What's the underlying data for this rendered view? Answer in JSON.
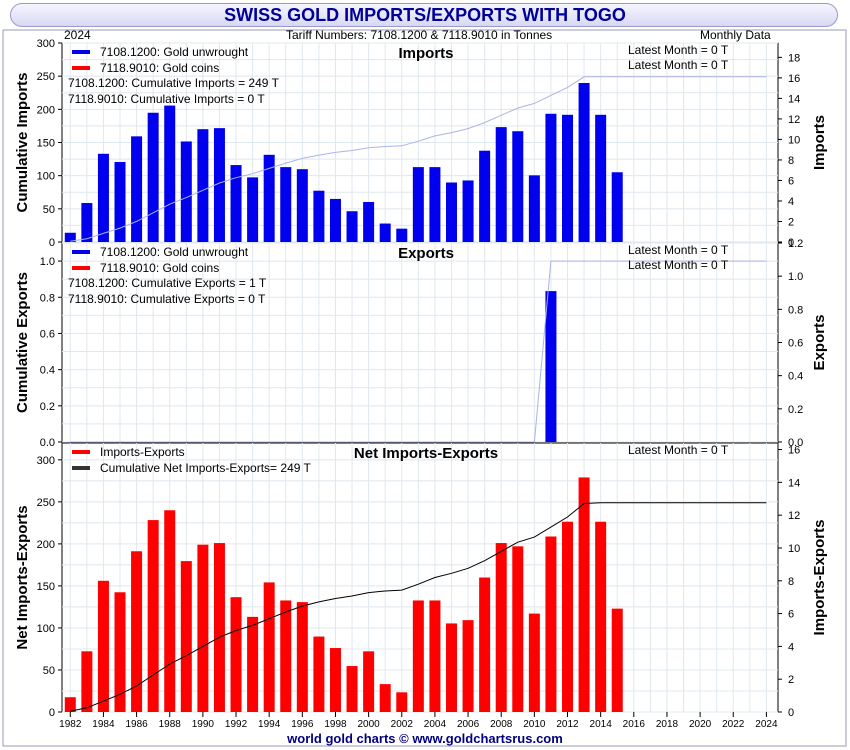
{
  "title": "SWISS GOLD IMPORTS/EXPORTS WITH TOGO",
  "year_label": "2024",
  "tariff_label": "Tariff Numbers: 7108.1200 & 7118.9010 in Tonnes",
  "frequency_label": "Monthly Data",
  "footer": "world gold charts © www.goldchartsrus.com",
  "colors": {
    "blue": "#0000ee",
    "red": "#ff0000",
    "cum_line": "#aab4e8",
    "net_line": "#000000",
    "grid": "#dfe8ee"
  },
  "chart_data": [
    {
      "id": "imports",
      "type": "bar",
      "title": "Imports",
      "ylabel_left": "Cumulative Imports",
      "ylabel_right": "Imports",
      "ylim_left": [
        0,
        300
      ],
      "yticks_left": [
        0,
        50,
        100,
        150,
        200,
        250,
        300
      ],
      "ylim_right": [
        0,
        19.4
      ],
      "yticks_right": [
        0,
        2,
        4,
        6,
        8,
        10,
        12,
        14,
        16,
        18
      ],
      "legend": [
        {
          "label": "7108.1200: Gold unwrought",
          "color": "#0000ee"
        },
        {
          "label": "7118.9010: Gold coins",
          "color": "#ff0000"
        }
      ],
      "notes": [
        "7108.1200: Cumulative Imports = 249 T",
        "7118.9010: Cumulative Imports = 0 T"
      ],
      "latest": [
        "Latest Month = 0 T",
        "Latest Month = 0 T"
      ],
      "x": [
        1982,
        1983,
        1984,
        1985,
        1986,
        1987,
        1988,
        1989,
        1990,
        1991,
        1992,
        1993,
        1994,
        1995,
        1996,
        1997,
        1998,
        1999,
        2000,
        2001,
        2002,
        2003,
        2004,
        2005,
        2006,
        2007,
        2008,
        2009,
        2010,
        2011,
        2012,
        2013,
        2014,
        2015
      ],
      "series": [
        {
          "name": "7108.1200: Gold unwrought",
          "values": [
            0.9,
            3.8,
            8.6,
            7.8,
            10.3,
            12.6,
            13.3,
            9.8,
            11.0,
            11.1,
            7.5,
            6.3,
            8.5,
            7.3,
            7.1,
            5.0,
            4.2,
            3.0,
            3.9,
            1.8,
            1.3,
            7.3,
            7.3,
            5.8,
            6.0,
            8.9,
            11.2,
            10.8,
            6.5,
            12.5,
            12.4,
            15.5,
            12.4,
            6.8
          ]
        }
      ],
      "cumulative": {
        "name": "Cumulative Imports",
        "values": [
          1,
          5,
          13,
          21,
          31,
          44,
          57,
          67,
          78,
          89,
          97,
          103,
          111,
          119,
          126,
          131,
          135,
          138,
          142,
          144,
          145,
          152,
          160,
          165,
          171,
          180,
          191,
          202,
          209,
          221,
          233,
          249,
          249,
          249,
          249,
          249,
          249,
          249,
          249,
          249,
          249,
          249,
          249
        ]
      }
    },
    {
      "id": "exports",
      "type": "bar",
      "title": "Exports",
      "ylabel_left": "Cumulative Exports",
      "ylabel_right": "Exports",
      "ylim_left": [
        0,
        1.1
      ],
      "yticks_left": [
        0.0,
        0.2,
        0.4,
        0.6,
        0.8,
        1.0
      ],
      "ylim_right": [
        0,
        1.2
      ],
      "yticks_right": [
        0.0,
        0.2,
        0.4,
        0.6,
        0.8,
        1.0,
        1.2
      ],
      "legend": [
        {
          "label": "7108.1200: Gold unwrought",
          "color": "#0000ee"
        },
        {
          "label": "7118.9010: Gold coins",
          "color": "#ff0000"
        }
      ],
      "notes": [
        "7108.1200: Cumulative Exports = 1 T",
        "7118.9010: Cumulative Exports = 0 T"
      ],
      "latest": [
        "Latest Month = 0 T",
        "Latest Month = 0 T"
      ],
      "x": [
        2011
      ],
      "series": [
        {
          "name": "7108.1200: Gold unwrought",
          "values": [
            0.91
          ]
        }
      ],
      "cumulative": {
        "name": "Cumulative Exports",
        "values": [
          0,
          0,
          0,
          0,
          0,
          0,
          0,
          0,
          0,
          0,
          0,
          0,
          0,
          0,
          0,
          0,
          0,
          0,
          0,
          0,
          0,
          0,
          0,
          0,
          0,
          0,
          0,
          0,
          0,
          1,
          1,
          1,
          1,
          1,
          1,
          1,
          1,
          1,
          1,
          1,
          1,
          1,
          1
        ]
      }
    },
    {
      "id": "net",
      "type": "bar",
      "title": "Net Imports-Exports",
      "ylabel_left": "Net Imports-Exports",
      "ylabel_right": "Imports-Exports",
      "ylim_left": [
        0,
        320
      ],
      "yticks_left": [
        0,
        50,
        100,
        150,
        200,
        250,
        300
      ],
      "ylim_right": [
        0,
        16.4
      ],
      "yticks_right": [
        0,
        2,
        4,
        6,
        8,
        10,
        12,
        14,
        16
      ],
      "xticks": [
        1982,
        1984,
        1986,
        1988,
        1990,
        1992,
        1994,
        1996,
        1998,
        2000,
        2002,
        2004,
        2006,
        2008,
        2010,
        2012,
        2014,
        2016,
        2018,
        2020,
        2022,
        2024
      ],
      "legend": [
        {
          "label": "Imports-Exports",
          "color": "#ff0000"
        },
        {
          "label": "Cumulative Net Imports-Exports= 249 T",
          "color": "#333333"
        }
      ],
      "latest": [
        "Latest Month = 0 T"
      ],
      "x": [
        1982,
        1983,
        1984,
        1985,
        1986,
        1987,
        1988,
        1989,
        1990,
        1991,
        1992,
        1993,
        1994,
        1995,
        1996,
        1997,
        1998,
        1999,
        2000,
        2001,
        2002,
        2003,
        2004,
        2005,
        2006,
        2007,
        2008,
        2009,
        2010,
        2011,
        2012,
        2013,
        2014,
        2015
      ],
      "series": [
        {
          "name": "Imports-Exports",
          "values": [
            0.9,
            3.7,
            8.0,
            7.3,
            9.8,
            11.7,
            12.3,
            9.2,
            10.2,
            10.3,
            7.0,
            5.8,
            7.9,
            6.8,
            6.7,
            4.6,
            3.9,
            2.8,
            3.7,
            1.7,
            1.2,
            6.8,
            6.8,
            5.4,
            5.6,
            8.2,
            10.3,
            10.1,
            6.0,
            10.7,
            11.6,
            14.3,
            11.6,
            6.3
          ]
        }
      ],
      "cumulative": {
        "name": "Cumulative Net Imports-Exports",
        "values": [
          1,
          5,
          13,
          21,
          31,
          44,
          57,
          67,
          78,
          89,
          97,
          103,
          111,
          119,
          126,
          131,
          135,
          138,
          142,
          144,
          145,
          152,
          160,
          165,
          171,
          180,
          191,
          202,
          208,
          220,
          232,
          248,
          249,
          249,
          249,
          249,
          249,
          249,
          249,
          249,
          249,
          249,
          249
        ]
      }
    }
  ]
}
